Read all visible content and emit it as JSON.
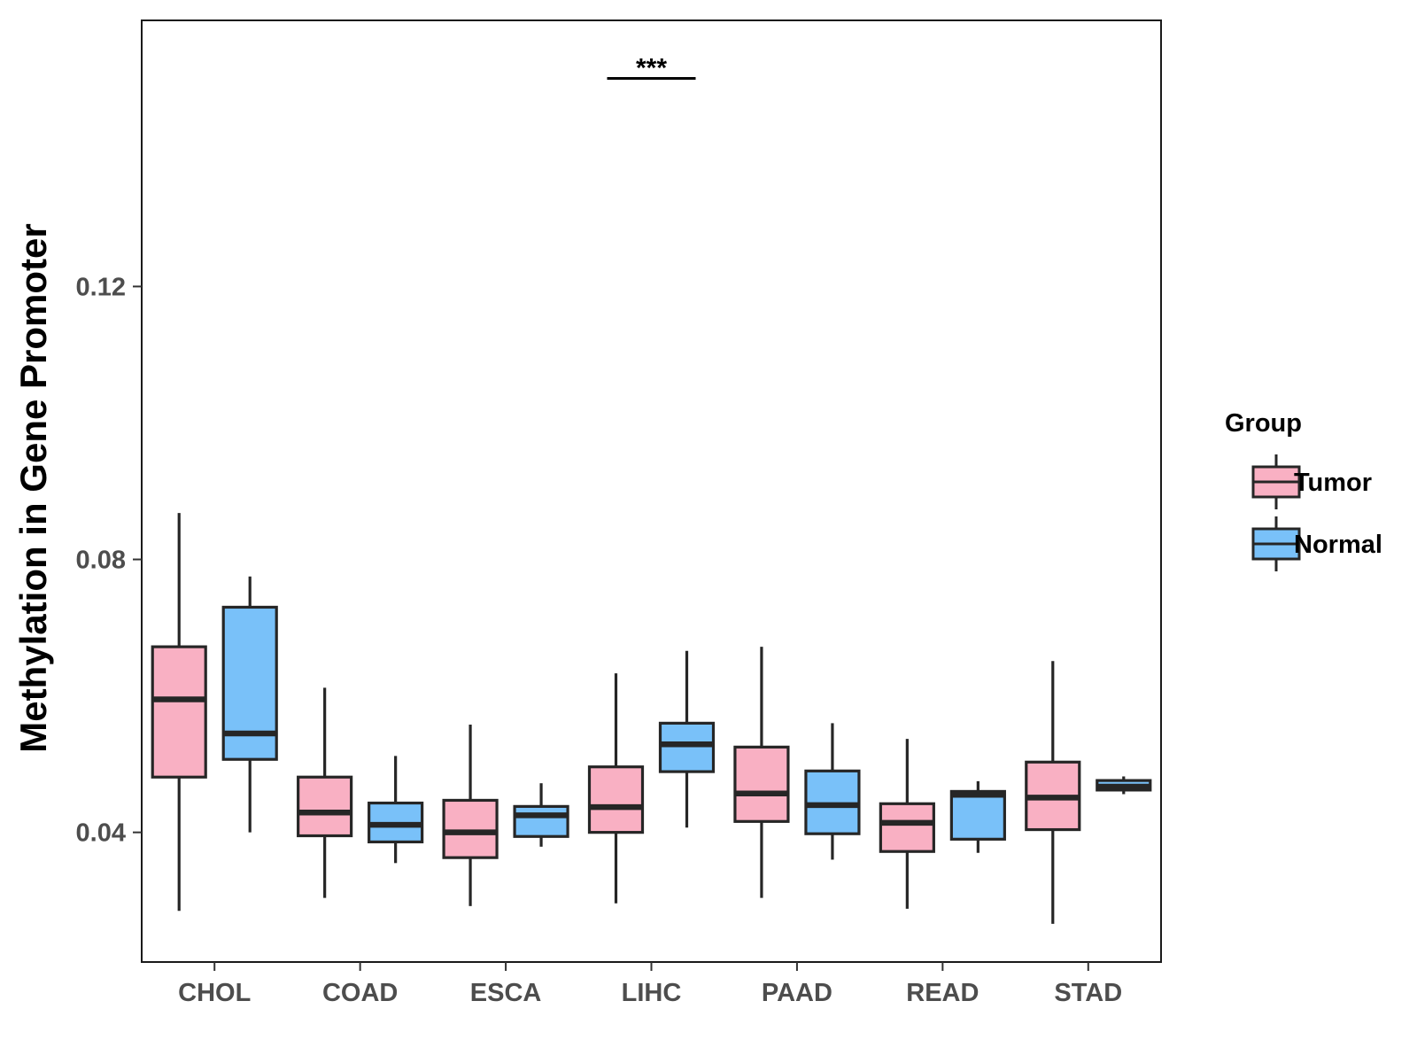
{
  "chart_data": {
    "type": "boxplot",
    "title": "",
    "xlabel": "",
    "ylabel": "Methylation in Gene Promoter",
    "ylim": [
      0.021,
      0.159
    ],
    "y_ticks": [
      0.04,
      0.08,
      0.12
    ],
    "y_tick_labels": [
      "0.04",
      "0.08",
      "0.12"
    ],
    "categories": [
      "CHOL",
      "COAD",
      "ESCA",
      "LIHC",
      "PAAD",
      "READ",
      "STAD"
    ],
    "legend": {
      "title": "Group",
      "position": "right",
      "entries": [
        {
          "name": "Tumor",
          "color": "#F9B0C3"
        },
        {
          "name": "Normal",
          "color": "#79C1F9"
        }
      ]
    },
    "series": [
      {
        "name": "Tumor",
        "color": "#F9B0C3",
        "boxes": [
          {
            "category": "CHOL",
            "min": 0.0285,
            "q1": 0.0481,
            "median": 0.0595,
            "q3": 0.0672,
            "max": 0.0868
          },
          {
            "category": "COAD",
            "min": 0.0304,
            "q1": 0.0395,
            "median": 0.0429,
            "q3": 0.0481,
            "max": 0.0612
          },
          {
            "category": "ESCA",
            "min": 0.0292,
            "q1": 0.0363,
            "median": 0.04,
            "q3": 0.0447,
            "max": 0.0558
          },
          {
            "category": "LIHC",
            "min": 0.0296,
            "q1": 0.04,
            "median": 0.0437,
            "q3": 0.0496,
            "max": 0.0633
          },
          {
            "category": "PAAD",
            "min": 0.0304,
            "q1": 0.0416,
            "median": 0.0457,
            "q3": 0.0525,
            "max": 0.0672
          },
          {
            "category": "READ",
            "min": 0.0288,
            "q1": 0.0372,
            "median": 0.0414,
            "q3": 0.0442,
            "max": 0.0537
          },
          {
            "category": "STAD",
            "min": 0.0266,
            "q1": 0.0404,
            "median": 0.0451,
            "q3": 0.0503,
            "max": 0.0651
          }
        ]
      },
      {
        "name": "Normal",
        "color": "#79C1F9",
        "boxes": [
          {
            "category": "CHOL",
            "min": 0.04,
            "q1": 0.0507,
            "median": 0.0545,
            "q3": 0.073,
            "max": 0.0775
          },
          {
            "category": "COAD",
            "min": 0.0355,
            "q1": 0.0386,
            "median": 0.0411,
            "q3": 0.0443,
            "max": 0.0512
          },
          {
            "category": "ESCA",
            "min": 0.0379,
            "q1": 0.0394,
            "median": 0.0425,
            "q3": 0.0438,
            "max": 0.0472
          },
          {
            "category": "LIHC",
            "min": 0.0407,
            "q1": 0.0489,
            "median": 0.0529,
            "q3": 0.056,
            "max": 0.0666
          },
          {
            "category": "PAAD",
            "min": 0.036,
            "q1": 0.0398,
            "median": 0.044,
            "q3": 0.049,
            "max": 0.056
          },
          {
            "category": "READ",
            "min": 0.037,
            "q1": 0.039,
            "median": 0.0455,
            "q3": 0.046,
            "max": 0.0475
          },
          {
            "category": "STAD",
            "min": 0.0456,
            "q1": 0.0462,
            "median": 0.0467,
            "q3": 0.0476,
            "max": 0.0482
          }
        ]
      }
    ],
    "annotations": [
      {
        "category": "LIHC",
        "text": "***",
        "y": 0.1505
      }
    ]
  }
}
